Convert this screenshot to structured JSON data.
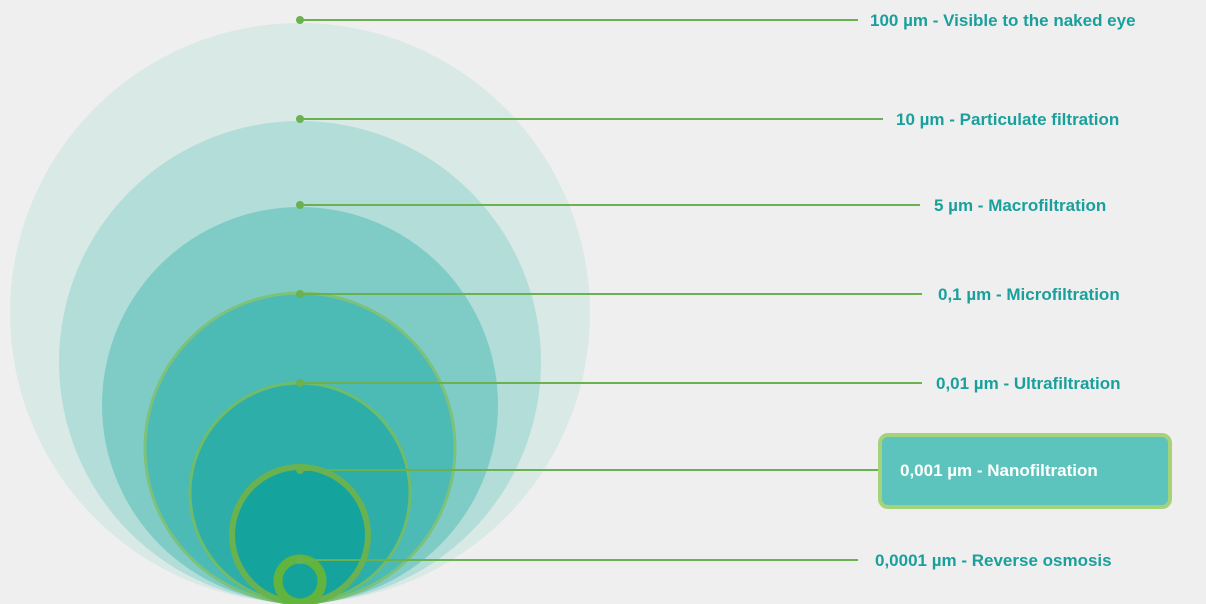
{
  "colors": {
    "background": "#efefef",
    "line": "#6ab24f",
    "text": "#1aa09c",
    "highlight_fill": "#5cc4bd",
    "highlight_border": "#a6d37a",
    "highlight_text": "#ffffff"
  },
  "levels": [
    {
      "label": "100 µm - Visible to the naked eye",
      "fill": "#d9e9e6",
      "ring": "none",
      "highlight": false
    },
    {
      "label": "10 µm - Particulate filtration",
      "fill": "#b3ddd9",
      "ring": "none",
      "highlight": false
    },
    {
      "label": "5 µm - Macrofiltration",
      "fill": "#7fccc6",
      "ring": "none",
      "highlight": false
    },
    {
      "label": "0,1 µm - Microfiltration",
      "fill": "#4cbab5",
      "ring": "#7dc27a",
      "highlight": false
    },
    {
      "label": "0,01 µm - Ultrafiltration",
      "fill": "#2eaea8",
      "ring": "#6fbd6a",
      "highlight": false
    },
    {
      "label": "0,001 µm - Nanofiltration",
      "fill": "#15a49d",
      "ring": "#6ab24f",
      "highlight": true
    },
    {
      "label": "0,0001 µm - Reverse osmosis",
      "fill": "#13a39b",
      "ring": "#62b43c",
      "highlight": false
    }
  ]
}
